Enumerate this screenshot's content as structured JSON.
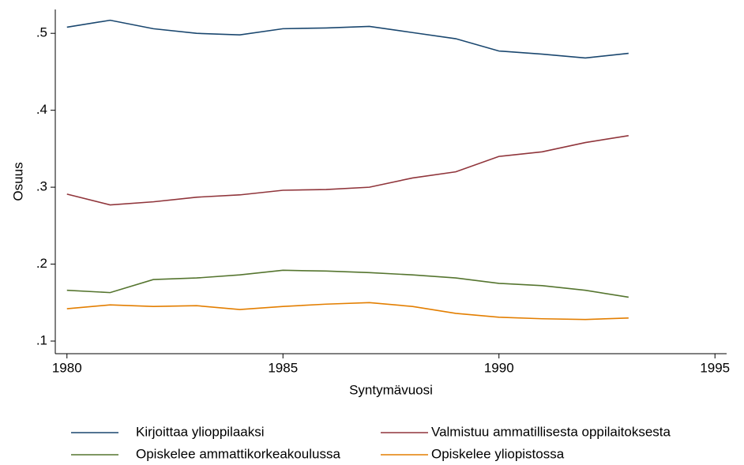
{
  "chart_data": {
    "type": "line",
    "x_label": "Syntymävuosi",
    "y_label": "Osuus",
    "x": [
      1980,
      1981,
      1982,
      1983,
      1984,
      1985,
      1986,
      1987,
      1988,
      1989,
      1990,
      1991,
      1992,
      1993
    ],
    "series": [
      {
        "name": "Kirjoittaa ylioppilaaksi",
        "color": "#1a476f",
        "values": [
          0.508,
          0.517,
          0.506,
          0.5,
          0.498,
          0.506,
          0.507,
          0.509,
          0.501,
          0.493,
          0.477,
          0.473,
          0.468,
          0.474
        ]
      },
      {
        "name": "Valmistuu ammatillisesta oppilaitoksesta",
        "color": "#90353b",
        "values": [
          0.291,
          0.277,
          0.281,
          0.287,
          0.29,
          0.296,
          0.297,
          0.3,
          0.312,
          0.32,
          0.34,
          0.346,
          0.358,
          0.367
        ]
      },
      {
        "name": "Opiskelee ammattikorkeakoulussa",
        "color": "#55752f",
        "values": [
          0.166,
          0.163,
          0.18,
          0.182,
          0.186,
          0.192,
          0.191,
          0.189,
          0.186,
          0.182,
          0.175,
          0.172,
          0.166,
          0.157
        ]
      },
      {
        "name": "Opiskelee yliopistossa",
        "color": "#e37e00",
        "values": [
          0.142,
          0.147,
          0.145,
          0.146,
          0.141,
          0.145,
          0.148,
          0.15,
          0.145,
          0.136,
          0.131,
          0.129,
          0.128,
          0.13
        ]
      }
    ],
    "xlim": [
      1979.73,
      1995.27
    ],
    "xticks": [
      1980,
      1985,
      1990,
      1995
    ],
    "ylim": [
      0.0836,
      0.531
    ],
    "yticks": [
      {
        "value": 0.1,
        "label": ".1"
      },
      {
        "value": 0.2,
        "label": ".2"
      },
      {
        "value": 0.3,
        "label": ".3"
      },
      {
        "value": 0.4,
        "label": ".4"
      },
      {
        "value": 0.5,
        "label": ".5"
      }
    ],
    "grid": false,
    "legend": "bottom"
  }
}
